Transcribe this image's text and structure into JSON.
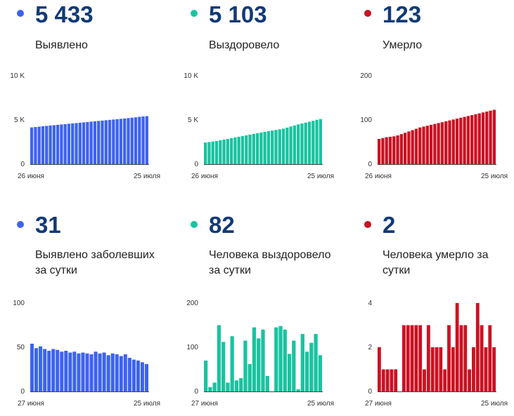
{
  "colors": {
    "blue": "#3d63f0",
    "green": "#19c3a0",
    "red": "#cc1122",
    "number": "#123a75"
  },
  "panels": [
    {
      "value": "5 433",
      "label": "Выявлено",
      "color": "#3d63f0"
    },
    {
      "value": "5 103",
      "label": "Выздоровело",
      "color": "#19c3a0"
    },
    {
      "value": "123",
      "label": "Умерло",
      "color": "#cc1122"
    },
    {
      "value": "31",
      "label": "Выявлено заболевших за сутки",
      "color": "#3d63f0"
    },
    {
      "value": "82",
      "label": "Человека выздоровело за сутки",
      "color": "#19c3a0"
    },
    {
      "value": "2",
      "label": "Человека умерло за сутки",
      "color": "#cc1122"
    }
  ],
  "chart_data": [
    {
      "type": "bar",
      "title": "Выявлено",
      "ylim": [
        0,
        10000
      ],
      "yticks": [
        {
          "v": 0,
          "label": "0"
        },
        {
          "v": 5000,
          "label": "5 K"
        },
        {
          "v": 10000,
          "label": "10 K"
        }
      ],
      "xlabels": [
        "26 июня",
        "25 июля"
      ],
      "values": [
        4160,
        4200,
        4240,
        4290,
        4330,
        4370,
        4410,
        4450,
        4490,
        4530,
        4570,
        4610,
        4650,
        4690,
        4730,
        4770,
        4810,
        4850,
        4890,
        4930,
        4970,
        5010,
        5050,
        5090,
        5130,
        5170,
        5210,
        5260,
        5300,
        5360,
        5400,
        5433
      ]
    },
    {
      "type": "bar",
      "title": "Выздоровело",
      "ylim": [
        0,
        10000
      ],
      "yticks": [
        {
          "v": 0,
          "label": "0"
        },
        {
          "v": 5000,
          "label": "5 K"
        },
        {
          "v": 10000,
          "label": "10 K"
        }
      ],
      "xlabels": [
        "26 июня",
        "25 июля"
      ],
      "values": [
        2450,
        2500,
        2560,
        2620,
        2700,
        2780,
        2850,
        2930,
        3020,
        3100,
        3180,
        3260,
        3340,
        3420,
        3500,
        3580,
        3660,
        3740,
        3800,
        3870,
        3940,
        4020,
        4130,
        4260,
        4380,
        4500,
        4600,
        4700,
        4800,
        4900,
        5020,
        5103
      ]
    },
    {
      "type": "bar",
      "title": "Умерло",
      "ylim": [
        0,
        200
      ],
      "yticks": [
        {
          "v": 0,
          "label": "0"
        },
        {
          "v": 100,
          "label": "100"
        },
        {
          "v": 200,
          "label": "200"
        }
      ],
      "xlabels": [
        "26 июня",
        "25 июля"
      ],
      "values": [
        57,
        59,
        61,
        62,
        63,
        65,
        68,
        71,
        74,
        77,
        80,
        83,
        85,
        87,
        89,
        91,
        93,
        95,
        97,
        99,
        101,
        103,
        105,
        107,
        109,
        111,
        113,
        115,
        117,
        119,
        121,
        123
      ]
    },
    {
      "type": "bar",
      "title": "Выявлено заболевших за сутки",
      "ylim": [
        0,
        100
      ],
      "yticks": [
        {
          "v": 0,
          "label": "0"
        },
        {
          "v": 50,
          "label": "50"
        },
        {
          "v": 100,
          "label": "100"
        }
      ],
      "xlabels": [
        "27 июня",
        "25 июля"
      ],
      "values": [
        54,
        49,
        51,
        48,
        46,
        48,
        47,
        45,
        46,
        44,
        45,
        43,
        44,
        43,
        42,
        45,
        43,
        44,
        41,
        43,
        42,
        40,
        42,
        38,
        36,
        35,
        33,
        31
      ]
    },
    {
      "type": "bar",
      "title": "Человека выздоровело за сутки",
      "ylim": [
        0,
        200
      ],
      "yticks": [
        {
          "v": 0,
          "label": "0"
        },
        {
          "v": 100,
          "label": "100"
        },
        {
          "v": 200,
          "label": "200"
        }
      ],
      "xlabels": [
        "27 июня",
        "25 июля"
      ],
      "values": [
        70,
        10,
        20,
        150,
        112,
        20,
        125,
        25,
        30,
        115,
        62,
        145,
        120,
        140,
        35,
        0,
        145,
        148,
        140,
        85,
        115,
        5,
        130,
        90,
        110,
        130,
        82
      ]
    },
    {
      "type": "bar",
      "title": "Человека умерло за сутки",
      "ylim": [
        0,
        4
      ],
      "yticks": [
        {
          "v": 0,
          "label": "0"
        },
        {
          "v": 2,
          "label": "2"
        },
        {
          "v": 4,
          "label": "4"
        }
      ],
      "xlabels": [
        "27 июня",
        "25 июля"
      ],
      "values": [
        2,
        1,
        1,
        1,
        1,
        0,
        3,
        3,
        3,
        3,
        3,
        1,
        3,
        2,
        2,
        2,
        1,
        3,
        2,
        4,
        3,
        3,
        1,
        2,
        4,
        3,
        2,
        3,
        2
      ]
    }
  ]
}
